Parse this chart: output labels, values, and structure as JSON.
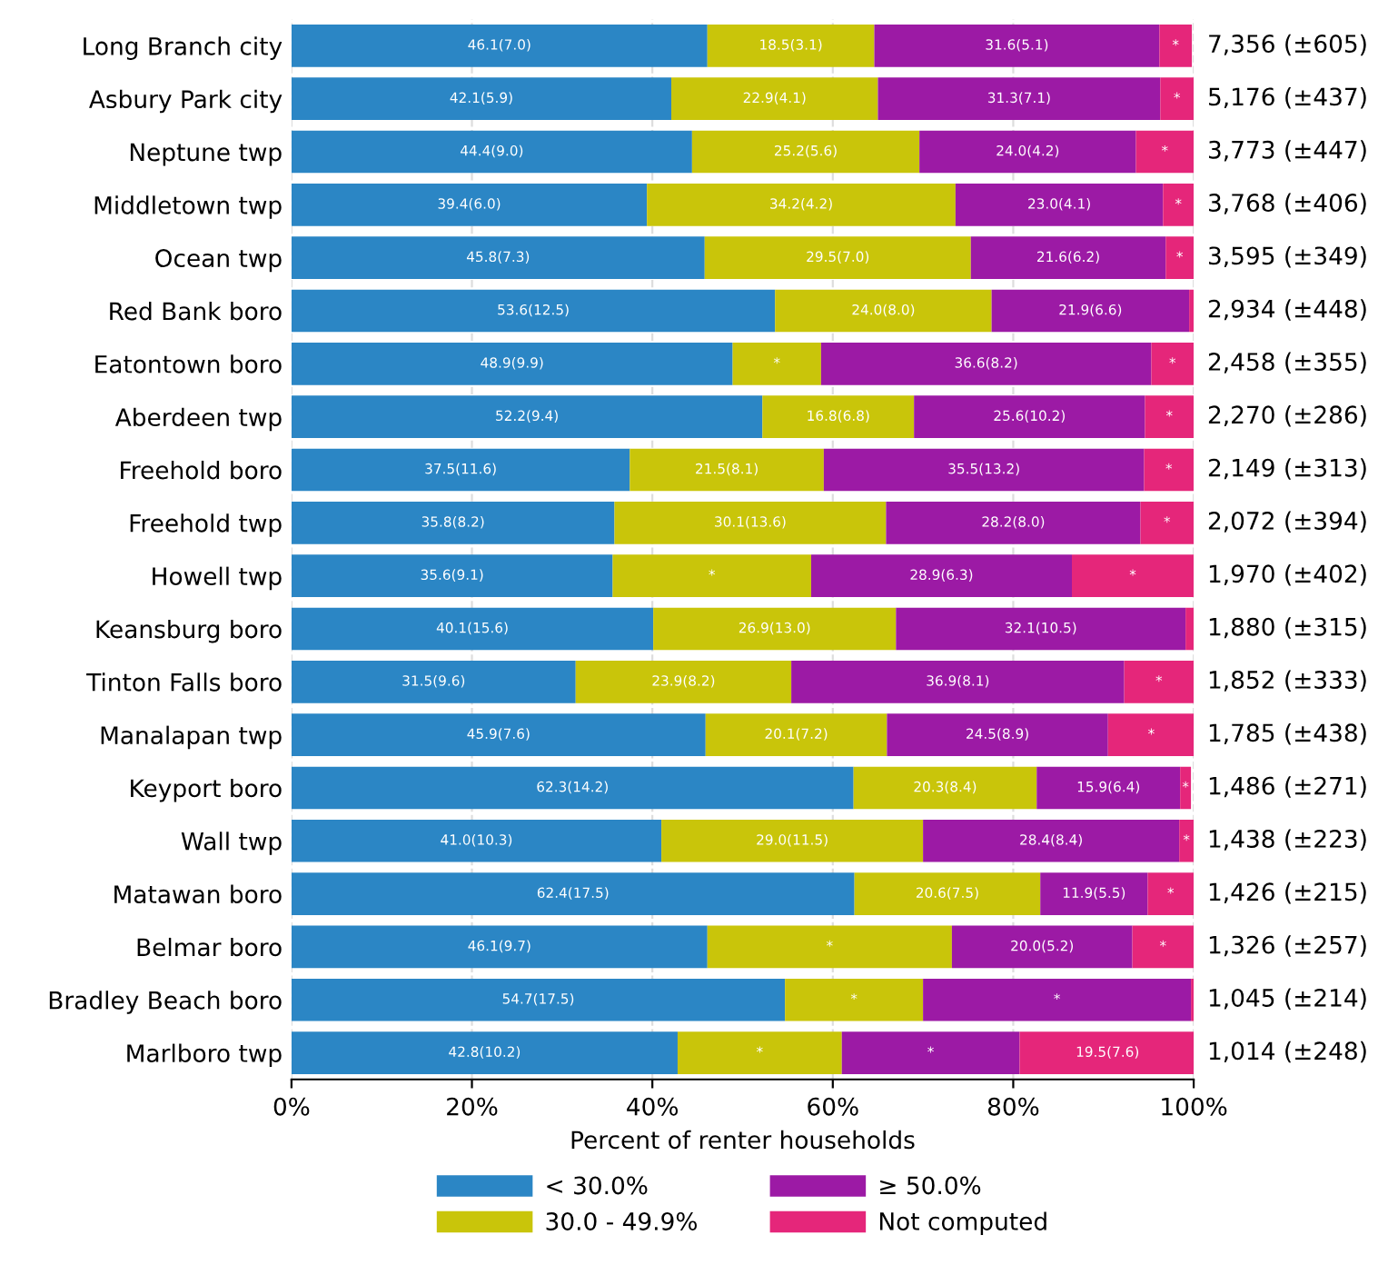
{
  "chart_data": {
    "type": "bar",
    "orientation": "horizontal",
    "stacked": true,
    "xlabel": "Percent of renter households",
    "categories": [
      "Long Branch city",
      "Asbury Park city",
      "Neptune twp",
      "Middletown twp",
      "Ocean twp",
      "Red Bank boro",
      "Eatontown boro",
      "Aberdeen twp",
      "Freehold boro",
      "Freehold twp",
      "Howell twp",
      "Keansburg boro",
      "Tinton Falls boro",
      "Manalapan twp",
      "Keyport boro",
      "Wall twp",
      "Matawan boro",
      "Belmar boro",
      "Bradley Beach boro",
      "Marlboro twp"
    ],
    "series": [
      {
        "name": "< 30.0%",
        "color": "#2b86c5",
        "values": [
          46.1,
          42.1,
          44.4,
          39.4,
          45.8,
          53.6,
          48.9,
          52.2,
          37.5,
          35.8,
          35.6,
          40.1,
          31.5,
          45.9,
          62.3,
          41.0,
          62.4,
          46.1,
          54.7,
          42.8
        ],
        "value_labels": [
          "46.1(7.0)",
          "42.1(5.9)",
          "44.4(9.0)",
          "39.4(6.0)",
          "45.8(7.3)",
          "53.6(12.5)",
          "48.9(9.9)",
          "52.2(9.4)",
          "37.5(11.6)",
          "35.8(8.2)",
          "35.6(9.1)",
          "40.1(15.6)",
          "31.5(9.6)",
          "45.9(7.6)",
          "62.3(14.2)",
          "41.0(10.3)",
          "62.4(17.5)",
          "46.1(9.7)",
          "54.7(17.5)",
          "42.8(10.2)"
        ]
      },
      {
        "name": "30.0 - 49.9%",
        "color": "#c9c50a",
        "values": [
          18.5,
          22.9,
          25.2,
          34.2,
          29.5,
          24.0,
          9.8,
          16.8,
          21.5,
          30.1,
          22.0,
          26.9,
          23.9,
          20.1,
          20.3,
          29.0,
          20.6,
          27.1,
          15.3,
          18.2
        ],
        "value_labels": [
          "18.5(3.1)",
          "22.9(4.1)",
          "25.2(5.6)",
          "34.2(4.2)",
          "29.5(7.0)",
          "24.0(8.0)",
          "*",
          "16.8(6.8)",
          "21.5(8.1)",
          "30.1(13.6)",
          "*",
          "26.9(13.0)",
          "23.9(8.2)",
          "20.1(7.2)",
          "20.3(8.4)",
          "29.0(11.5)",
          "20.6(7.5)",
          "*",
          "*",
          "*"
        ]
      },
      {
        "name": "≥ 50.0%",
        "color": "#9c1aa5",
        "values": [
          31.6,
          31.3,
          24.0,
          23.0,
          21.6,
          21.9,
          36.6,
          25.6,
          35.5,
          28.2,
          28.9,
          32.1,
          36.9,
          24.5,
          15.9,
          28.4,
          11.9,
          20.0,
          29.7,
          19.7
        ],
        "value_labels": [
          "31.6(5.1)",
          "31.3(7.1)",
          "24.0(4.2)",
          "23.0(4.1)",
          "21.6(6.2)",
          "21.9(6.6)",
          "36.6(8.2)",
          "25.6(10.2)",
          "35.5(13.2)",
          "28.2(8.0)",
          "28.9(6.3)",
          "32.1(10.5)",
          "36.9(8.1)",
          "24.5(8.9)",
          "15.9(6.4)",
          "28.4(8.4)",
          "11.9(5.5)",
          "20.0(5.2)",
          "*",
          "*"
        ]
      },
      {
        "name": "Not computed",
        "color": "#e5267a",
        "values": [
          3.6,
          3.7,
          6.4,
          3.4,
          3.1,
          0.5,
          4.7,
          5.4,
          5.5,
          5.9,
          13.5,
          0.9,
          7.7,
          9.6,
          1.2,
          1.6,
          5.1,
          6.8,
          0.3,
          19.5
        ],
        "value_labels": [
          "*",
          "*",
          "*",
          "*",
          "*",
          null,
          "*",
          "*",
          "*",
          "*",
          "*",
          null,
          "*",
          "*",
          "*",
          "*",
          "*",
          "*",
          null,
          "19.5(7.6)"
        ]
      }
    ],
    "totals": [
      "7,356 (±605)",
      "5,176 (±437)",
      "3,773 (±447)",
      "3,768 (±406)",
      "3,595 (±349)",
      "2,934 (±448)",
      "2,458 (±355)",
      "2,270 (±286)",
      "2,149 (±313)",
      "2,072 (±394)",
      "1,970 (±402)",
      "1,880 (±315)",
      "1,852 (±333)",
      "1,785 (±438)",
      "1,486 (±271)",
      "1,438 (±223)",
      "1,426 (±215)",
      "1,326 (±257)",
      "1,045 (±214)",
      "1,014 (±248)"
    ],
    "xlim": [
      0,
      100
    ],
    "xticks": [
      {
        "value": 0,
        "label": "0%"
      },
      {
        "value": 20,
        "label": "20%"
      },
      {
        "value": 40,
        "label": "40%"
      },
      {
        "value": 60,
        "label": "60%"
      },
      {
        "value": 80,
        "label": "80%"
      },
      {
        "value": 100,
        "label": "100%"
      }
    ],
    "grid": "x",
    "legend": "bottom"
  }
}
